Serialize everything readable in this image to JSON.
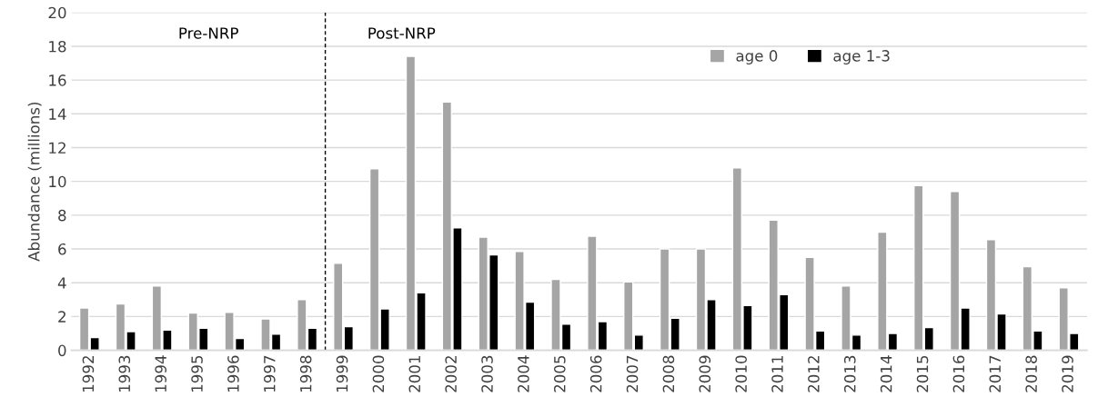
{
  "chart_data": {
    "type": "bar",
    "ylabel": "Abundance (millions)",
    "x": [
      1992,
      1993,
      1994,
      1995,
      1996,
      1997,
      1998,
      1999,
      2000,
      2001,
      2002,
      2003,
      2004,
      2005,
      2006,
      2007,
      2008,
      2009,
      2010,
      2011,
      2012,
      2013,
      2014,
      2015,
      2016,
      2017,
      2018,
      2019
    ],
    "xlim": [
      1991.5,
      2019.5
    ],
    "xticks": [
      1992,
      1993,
      1994,
      1995,
      1996,
      1997,
      1998,
      1999,
      2000,
      2001,
      2002,
      2003,
      2004,
      2005,
      2006,
      2007,
      2008,
      2009,
      2010,
      2011,
      2012,
      2013,
      2014,
      2015,
      2016,
      2017,
      2018,
      2019
    ],
    "ylim": [
      0,
      20
    ],
    "yticks": [
      0,
      2,
      4,
      6,
      8,
      10,
      12,
      14,
      16,
      18,
      20
    ],
    "series": [
      {
        "name": "age 0",
        "color": "#a5a5a5",
        "values": [
          2.5,
          2.75,
          3.8,
          2.2,
          2.25,
          1.85,
          3.0,
          5.15,
          10.75,
          17.4,
          14.7,
          6.7,
          5.85,
          4.2,
          6.75,
          4.05,
          6.0,
          6.0,
          10.8,
          7.7,
          5.5,
          3.8,
          7.0,
          9.75,
          9.4,
          6.55,
          4.95,
          3.7
        ]
      },
      {
        "name": "age 1-3",
        "color": "#000000",
        "values": [
          0.75,
          1.1,
          1.2,
          1.3,
          0.7,
          0.95,
          1.3,
          1.4,
          2.45,
          3.4,
          7.25,
          5.65,
          2.85,
          1.55,
          1.7,
          0.9,
          1.9,
          3.0,
          2.65,
          3.3,
          1.15,
          0.9,
          1.0,
          1.35,
          2.5,
          2.15,
          1.15,
          1.0
        ]
      }
    ],
    "ref_lines": [
      {
        "axis": "x",
        "value": 1998.5,
        "color": "#000000",
        "line_style": "dashed"
      }
    ],
    "annotations": [
      "Pre-NRP",
      "Post-NRP"
    ],
    "grid": "y",
    "legend": "top right"
  }
}
